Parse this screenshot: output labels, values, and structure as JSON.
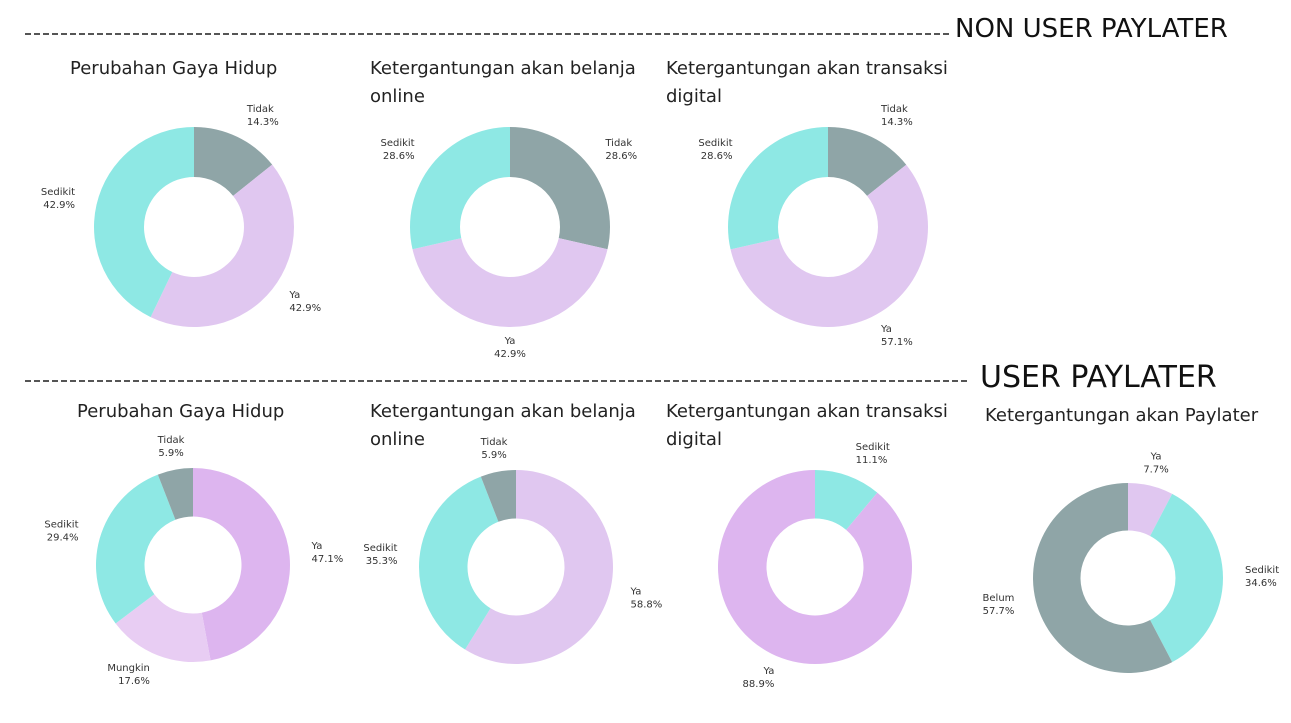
{
  "sections": [
    "NON USER PAYLATER",
    "USER PAYLATER"
  ],
  "chart_data": [
    {
      "type": "donut",
      "title": "Perubahan Gaya Hidup",
      "categories": [
        "Tidak",
        "Ya",
        "Sedikit"
      ],
      "values": [
        14.3,
        42.9,
        42.9
      ],
      "value_labels": [
        "14.3%",
        "42.9%",
        "42.9%"
      ],
      "colors": [
        "#8fa5a7",
        "#e0c7f0",
        "#8ee8e4"
      ]
    },
    {
      "type": "donut",
      "title": "Ketergantungan akan belanja online",
      "categories": [
        "Tidak",
        "Ya",
        "Sedikit"
      ],
      "values": [
        28.6,
        42.9,
        28.6
      ],
      "value_labels": [
        "28.6%",
        "42.9%",
        "28.6%"
      ],
      "colors": [
        "#8fa5a7",
        "#e0c7f0",
        "#8ee8e4"
      ]
    },
    {
      "type": "donut",
      "title": "Ketergantungan akan transaksi digital",
      "categories": [
        "Tidak",
        "Ya",
        "Sedikit"
      ],
      "values": [
        14.3,
        57.1,
        28.6
      ],
      "value_labels": [
        "14.3%",
        "57.1%",
        "28.6%"
      ],
      "colors": [
        "#8fa5a7",
        "#e0c7f0",
        "#8ee8e4"
      ]
    },
    {
      "type": "donut",
      "title": "Perubahan Gaya Hidup",
      "categories": [
        "Ya",
        "Mungkin",
        "Sedikit",
        "Tidak"
      ],
      "values": [
        47.1,
        17.6,
        29.4,
        5.9
      ],
      "value_labels": [
        "47.1%",
        "17.6%",
        "29.4%",
        "5.9%"
      ],
      "colors": [
        "#ddb5ef",
        "#e8cdf3",
        "#8ee8e4",
        "#8fa5a7"
      ]
    },
    {
      "type": "donut",
      "title": "Ketergantungan akan belanja online",
      "categories": [
        "Ya",
        "Sedikit",
        "Tidak"
      ],
      "values": [
        58.8,
        35.3,
        5.9
      ],
      "value_labels": [
        "58.8%",
        "35.3%",
        "5.9%"
      ],
      "colors": [
        "#e0c7f0",
        "#8ee8e4",
        "#8fa5a7"
      ]
    },
    {
      "type": "donut",
      "title": "Ketergantungan akan transaksi digital",
      "categories": [
        "Sedikit",
        "Ya"
      ],
      "values": [
        11.1,
        88.9
      ],
      "value_labels": [
        "11.1%",
        "88.9%"
      ],
      "colors": [
        "#8ee8e4",
        "#ddb5ef"
      ]
    },
    {
      "type": "donut",
      "title": "Ketergantungan akan Paylater",
      "categories": [
        "Ya",
        "Sedikit",
        "Belum"
      ],
      "values": [
        7.7,
        34.6,
        57.7
      ],
      "value_labels": [
        "7.7%",
        "34.6%",
        "57.7%"
      ],
      "colors": [
        "#e0c7f0",
        "#8ee8e4",
        "#8fa5a7"
      ]
    }
  ]
}
